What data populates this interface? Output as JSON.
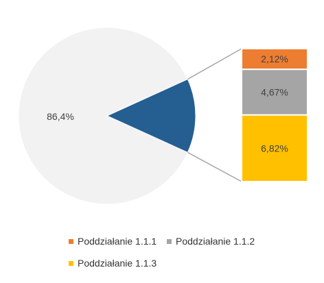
{
  "chart_data": {
    "type": "bar-of-pie",
    "pie": {
      "slices": [
        {
          "label": "86,4%",
          "value": 86.4,
          "color": "#f2f2f2"
        },
        {
          "label": "",
          "value": 13.6,
          "color": "#255e91"
        }
      ]
    },
    "bar": {
      "segments": [
        {
          "name": "Poddziałanie 1.1.1",
          "label": "2,12%",
          "value": 2.12,
          "color": "#ed7d31"
        },
        {
          "name": "Poddziałanie 1.1.2",
          "label": "4,67%",
          "value": 4.67,
          "color": "#a5a5a5"
        },
        {
          "name": "Poddziałanie 1.1.3",
          "label": "6,82%",
          "value": 6.82,
          "color": "#ffc000"
        }
      ]
    },
    "legend": {
      "position": "bottom",
      "items": [
        {
          "label": "Poddziałanie 1.1.1",
          "color": "#ed7d31"
        },
        {
          "label": "Poddziałanie 1.1.2",
          "color": "#a5a5a5"
        },
        {
          "label": "Poddziałanie 1.1.3",
          "color": "#ffc000"
        }
      ]
    },
    "label_color": "#404040",
    "connector_color": "#a6a6a6"
  }
}
